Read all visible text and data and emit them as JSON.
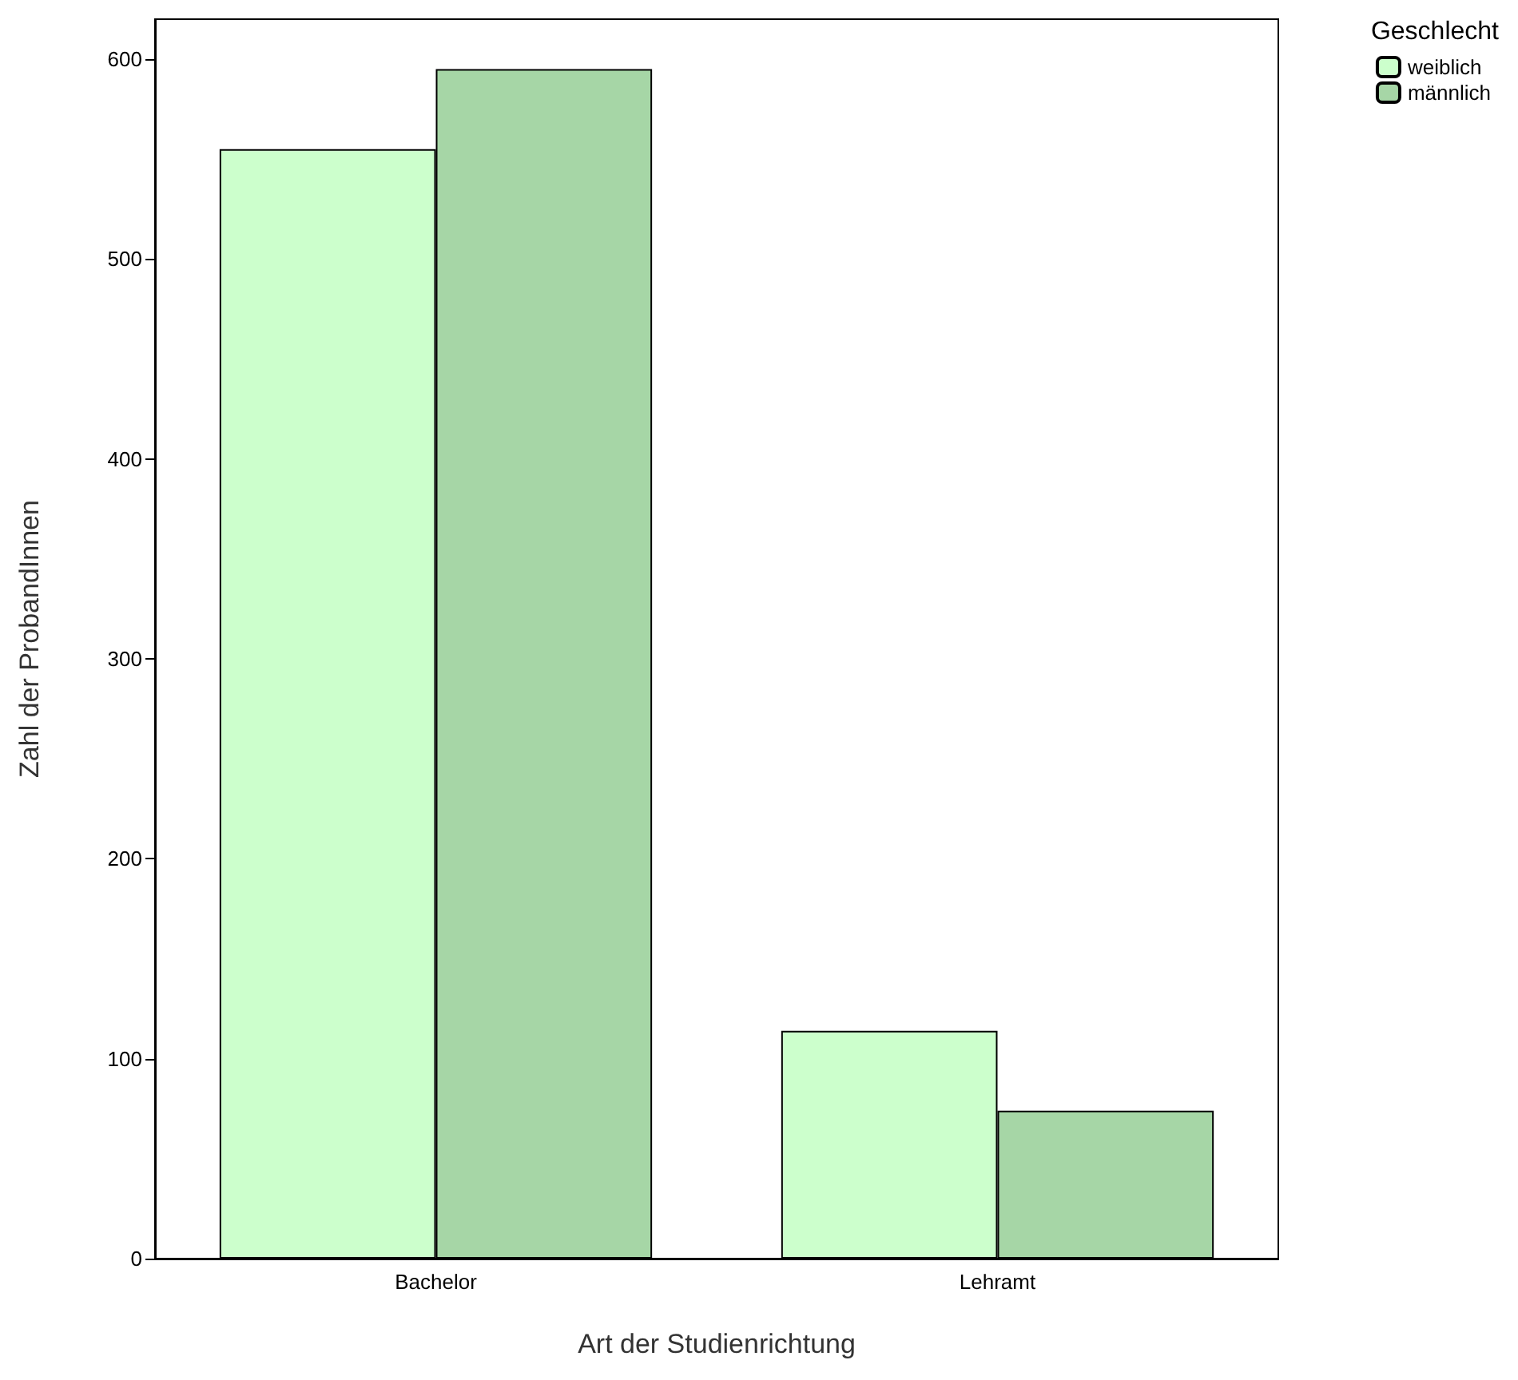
{
  "chart_data": {
    "type": "bar",
    "xlabel": "Art der Studienrichtung",
    "ylabel": "Zahl der ProbandInnen",
    "legend_title": "Geschlecht",
    "legend": "top right",
    "grid": false,
    "categories": [
      "Bachelor",
      "Lehramt"
    ],
    "series": [
      {
        "name": "weiblich",
        "color": "#ccffcc",
        "values": [
          555,
          114
        ]
      },
      {
        "name": "männlich",
        "color": "#a6d6a6",
        "values": [
          595,
          74
        ]
      }
    ],
    "ylim": [
      0,
      620
    ],
    "yticks": [
      0,
      100,
      200,
      300,
      400,
      500,
      600
    ]
  }
}
